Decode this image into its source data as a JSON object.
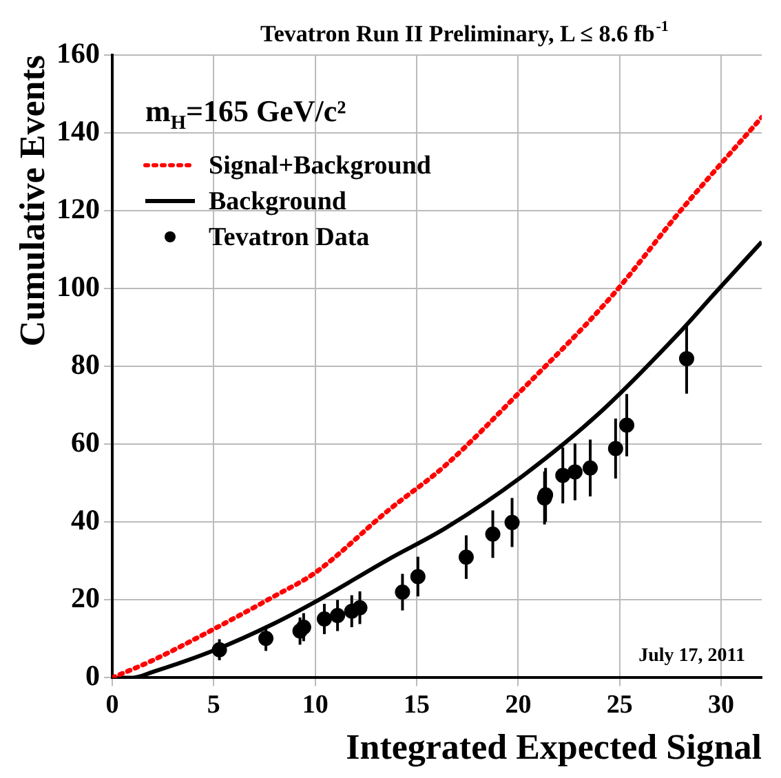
{
  "chart_data": {
    "type": "line",
    "title": "Tevatron Run II Preliminary, L ≤ 8.6 fb$^{-1}$",
    "xlabel": "Integrated Expected Signal",
    "ylabel": "Cumulative Events",
    "annotations": [
      "m$_{H}$=165 GeV/c²",
      "July 17, 2011"
    ],
    "xlim": [
      0,
      32
    ],
    "xticks": [
      0,
      5,
      10,
      15,
      20,
      25,
      30
    ],
    "ylim": [
      0,
      160
    ],
    "yticks": [
      0,
      20,
      40,
      60,
      80,
      100,
      120,
      140,
      160
    ],
    "grid": true,
    "legend": "top left",
    "series": [
      {
        "name": "Signal+Background",
        "color": "#ff0000",
        "line_style": "dotted",
        "marker": "none",
        "x": [
          0,
          2,
          5,
          8,
          10,
          13.6,
          16.4,
          20,
          24.6,
          28,
          32
        ],
        "values": [
          0,
          4.5,
          12.5,
          21,
          27,
          43,
          54.5,
          73,
          98,
          120,
          144
        ]
      },
      {
        "name": "Background",
        "color": "#000000",
        "line_style": "solid",
        "marker": "none",
        "x": [
          0,
          1,
          2,
          5,
          8,
          10,
          13.6,
          16.4,
          20,
          24,
          28,
          29.55,
          32
        ],
        "values": [
          0,
          0,
          1.5,
          7,
          14,
          19.5,
          30.4,
          38.4,
          51,
          68,
          89,
          98,
          112
        ]
      },
      {
        "name": "Tevatron Data",
        "type": "scatter",
        "color": "#000000",
        "marker": "circle",
        "x": [
          5.28,
          7.57,
          9.25,
          9.43,
          10.45,
          11.1,
          11.8,
          12.2,
          14.3,
          15.06,
          17.44,
          18.75,
          19.7,
          21.3,
          21.35,
          22.2,
          22.8,
          23.55,
          24.8,
          25.35,
          28.3
        ],
        "values": [
          7.2,
          10.1,
          12,
          13,
          15.1,
          16,
          17.1,
          18,
          22,
          26,
          31,
          36.9,
          39.9,
          46.2,
          47,
          52,
          52.9,
          53.9,
          58.9,
          64.9,
          82
        ],
        "errors": [
          2.7,
          3.2,
          3.5,
          3.6,
          3.9,
          4,
          4.1,
          4.2,
          4.7,
          5.1,
          5.6,
          6.1,
          6.3,
          6.8,
          6.9,
          7.2,
          7.3,
          7.3,
          7.7,
          8,
          9
        ]
      }
    ]
  }
}
